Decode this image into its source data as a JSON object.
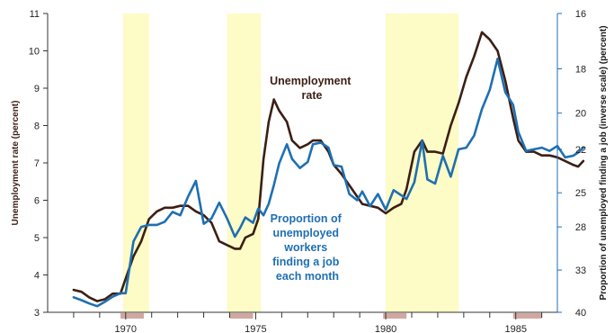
{
  "chart_data": {
    "type": "line",
    "x_label": "",
    "xlim": [
      1967,
      1986.6
    ],
    "x_ticks": [
      1970,
      1975,
      1980,
      1985
    ],
    "left_axis": {
      "label": "Unemployment rate (percent)",
      "range": [
        3,
        11
      ],
      "ticks": [
        3,
        4,
        5,
        6,
        7,
        8,
        9,
        10,
        11
      ],
      "color": "#3b1f14"
    },
    "right_axis": {
      "label": "Proportion of unemployed finding a job (inverse scale) (percent)",
      "scale": "inverse",
      "range_top": 16,
      "range_bottom": 40,
      "ticks": [
        16,
        18,
        20,
        22,
        25,
        28,
        33,
        40
      ],
      "color": "#1f6fb2"
    },
    "recession_shading": [
      [
        1969.9,
        1970.9
      ],
      [
        1973.9,
        1975.2
      ],
      [
        1980.0,
        1982.8
      ]
    ],
    "recession_shading_color": "#fdfbc6",
    "recession_markers": [
      [
        1969.8,
        1970.7
      ],
      [
        1974.0,
        1974.9
      ],
      [
        1979.9,
        1980.8
      ],
      [
        1984.9,
        1986.0
      ]
    ],
    "recession_marker_color": "#d2a7a1",
    "series": [
      {
        "name": "Unemployment rate",
        "axis": "left",
        "color": "#3b1f14",
        "points": [
          [
            1968.0,
            3.6
          ],
          [
            1968.3,
            3.55
          ],
          [
            1968.6,
            3.4
          ],
          [
            1968.9,
            3.3
          ],
          [
            1969.2,
            3.35
          ],
          [
            1969.5,
            3.5
          ],
          [
            1969.8,
            3.5
          ],
          [
            1970.0,
            3.9
          ],
          [
            1970.3,
            4.5
          ],
          [
            1970.6,
            4.9
          ],
          [
            1970.9,
            5.5
          ],
          [
            1971.2,
            5.7
          ],
          [
            1971.5,
            5.8
          ],
          [
            1971.8,
            5.8
          ],
          [
            1972.1,
            5.85
          ],
          [
            1972.4,
            5.85
          ],
          [
            1972.7,
            5.7
          ],
          [
            1973.0,
            5.6
          ],
          [
            1973.3,
            5.4
          ],
          [
            1973.6,
            4.9
          ],
          [
            1973.9,
            4.8
          ],
          [
            1974.2,
            4.7
          ],
          [
            1974.4,
            4.7
          ],
          [
            1974.6,
            5.0
          ],
          [
            1974.9,
            5.1
          ],
          [
            1975.1,
            5.5
          ],
          [
            1975.3,
            7.1
          ],
          [
            1975.5,
            8.1
          ],
          [
            1975.7,
            8.7
          ],
          [
            1975.9,
            8.4
          ],
          [
            1976.2,
            8.1
          ],
          [
            1976.4,
            7.6
          ],
          [
            1976.7,
            7.4
          ],
          [
            1977.0,
            7.5
          ],
          [
            1977.2,
            7.6
          ],
          [
            1977.5,
            7.6
          ],
          [
            1977.8,
            7.3
          ],
          [
            1978.0,
            6.95
          ],
          [
            1978.3,
            6.7
          ],
          [
            1978.6,
            6.4
          ],
          [
            1978.9,
            6.1
          ],
          [
            1979.1,
            5.9
          ],
          [
            1979.4,
            5.85
          ],
          [
            1979.7,
            5.8
          ],
          [
            1980.0,
            5.65
          ],
          [
            1980.3,
            5.8
          ],
          [
            1980.6,
            5.9
          ],
          [
            1980.8,
            6.3
          ],
          [
            1981.1,
            7.3
          ],
          [
            1981.4,
            7.6
          ],
          [
            1981.6,
            7.3
          ],
          [
            1981.9,
            7.3
          ],
          [
            1982.2,
            7.25
          ],
          [
            1982.5,
            8.0
          ],
          [
            1982.8,
            8.6
          ],
          [
            1983.1,
            9.3
          ],
          [
            1983.4,
            9.85
          ],
          [
            1983.7,
            10.5
          ],
          [
            1984.0,
            10.3
          ],
          [
            1984.3,
            10.0
          ],
          [
            1984.6,
            9.2
          ],
          [
            1984.9,
            8.2
          ],
          [
            1985.1,
            7.6
          ],
          [
            1985.4,
            7.3
          ],
          [
            1985.7,
            7.3
          ],
          [
            1986.0,
            7.2
          ],
          [
            1986.3,
            7.2
          ],
          [
            1986.6,
            7.15
          ],
          [
            1986.9,
            7.05
          ],
          [
            1987.2,
            6.95
          ],
          [
            1987.4,
            6.9
          ],
          [
            1987.6,
            7.05
          ]
        ]
      },
      {
        "name": "Proportion of unemployed workers finding a job each month",
        "axis": "right",
        "color": "#1f6fb2",
        "points": [
          [
            1968.0,
            37.2
          ],
          [
            1968.3,
            37.7
          ],
          [
            1968.6,
            38.3
          ],
          [
            1968.9,
            38.8
          ],
          [
            1969.2,
            38.0
          ],
          [
            1969.5,
            37.1
          ],
          [
            1969.8,
            36.5
          ],
          [
            1970.0,
            36.5
          ],
          [
            1970.3,
            29.5
          ],
          [
            1970.6,
            28.0
          ],
          [
            1970.9,
            27.8
          ],
          [
            1971.2,
            27.8
          ],
          [
            1971.5,
            27.5
          ],
          [
            1971.8,
            26.6
          ],
          [
            1972.1,
            26.9
          ],
          [
            1972.4,
            25.3
          ],
          [
            1972.7,
            24.1
          ],
          [
            1973.0,
            27.7
          ],
          [
            1973.3,
            27.2
          ],
          [
            1973.6,
            25.8
          ],
          [
            1973.9,
            27.2
          ],
          [
            1974.2,
            29.0
          ],
          [
            1974.4,
            28.1
          ],
          [
            1974.6,
            27.1
          ],
          [
            1974.9,
            27.6
          ],
          [
            1975.1,
            26.3
          ],
          [
            1975.3,
            26.9
          ],
          [
            1975.5,
            25.9
          ],
          [
            1975.7,
            24.4
          ],
          [
            1975.9,
            22.9
          ],
          [
            1976.2,
            21.7
          ],
          [
            1976.4,
            22.6
          ],
          [
            1976.7,
            23.2
          ],
          [
            1977.0,
            22.8
          ],
          [
            1977.2,
            21.7
          ],
          [
            1977.5,
            21.6
          ],
          [
            1977.8,
            21.9
          ],
          [
            1978.0,
            23.0
          ],
          [
            1978.3,
            23.1
          ],
          [
            1978.6,
            25.1
          ],
          [
            1978.9,
            25.6
          ],
          [
            1979.1,
            24.9
          ],
          [
            1979.4,
            26.1
          ],
          [
            1979.7,
            25.1
          ],
          [
            1980.0,
            26.4
          ],
          [
            1980.3,
            24.8
          ],
          [
            1980.6,
            25.2
          ],
          [
            1980.8,
            25.5
          ],
          [
            1981.1,
            24.2
          ],
          [
            1981.4,
            21.5
          ],
          [
            1981.6,
            24.0
          ],
          [
            1981.9,
            24.3
          ],
          [
            1982.2,
            22.4
          ],
          [
            1982.5,
            23.8
          ],
          [
            1982.8,
            22.0
          ],
          [
            1983.1,
            21.9
          ],
          [
            1983.4,
            21.2
          ],
          [
            1983.7,
            19.8
          ],
          [
            1984.0,
            18.9
          ],
          [
            1984.3,
            17.6
          ],
          [
            1984.6,
            19.0
          ],
          [
            1984.9,
            19.6
          ],
          [
            1985.1,
            21.0
          ],
          [
            1985.4,
            22.1
          ],
          [
            1985.7,
            22.0
          ],
          [
            1986.0,
            21.9
          ],
          [
            1986.3,
            22.1
          ],
          [
            1986.6,
            21.8
          ],
          [
            1986.9,
            22.5
          ],
          [
            1987.2,
            22.4
          ],
          [
            1987.4,
            22.2
          ],
          [
            1987.6,
            21.9
          ]
        ]
      }
    ],
    "annotations": [
      {
        "target": "Unemployment rate",
        "lines": [
          "Unemployment",
          "rate"
        ],
        "color": "#3b1f14"
      },
      {
        "target": "Proportion of unemployed workers finding a job each month",
        "lines": [
          "Proportion of",
          "unemployed",
          "workers",
          "finding a job",
          "each month"
        ],
        "color": "#1f6fb2"
      }
    ],
    "grid": false,
    "legend": "none"
  }
}
